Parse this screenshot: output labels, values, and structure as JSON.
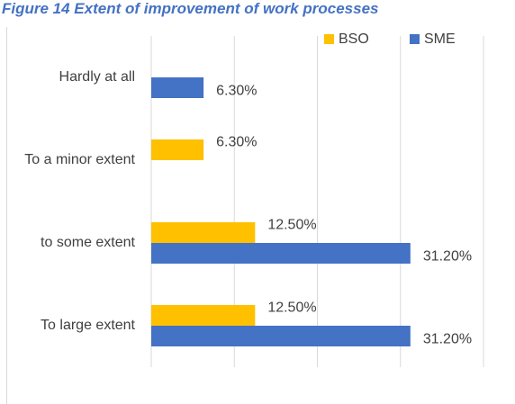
{
  "chart_data": {
    "type": "bar",
    "orientation": "horizontal",
    "title": "Figure 14 Extent of improvement of work processes",
    "categories": [
      "Hardly at all",
      "To a minor extent",
      "to some extent",
      "To large extent"
    ],
    "series": [
      {
        "name": "BSO",
        "color": "#ffc000",
        "values": [
          null,
          6.3,
          12.5,
          12.5
        ],
        "value_labels": [
          null,
          "6.30%",
          "12.50%",
          "12.50%"
        ]
      },
      {
        "name": "SME",
        "color": "#4472c4",
        "values": [
          6.3,
          null,
          31.2,
          31.2
        ],
        "value_labels": [
          "6.30%",
          null,
          "31.20%",
          "31.20%"
        ]
      }
    ],
    "xlim": [
      0,
      40
    ],
    "xticks": [
      0,
      10,
      20,
      30,
      40
    ],
    "grid": true,
    "legend": "top-right"
  }
}
